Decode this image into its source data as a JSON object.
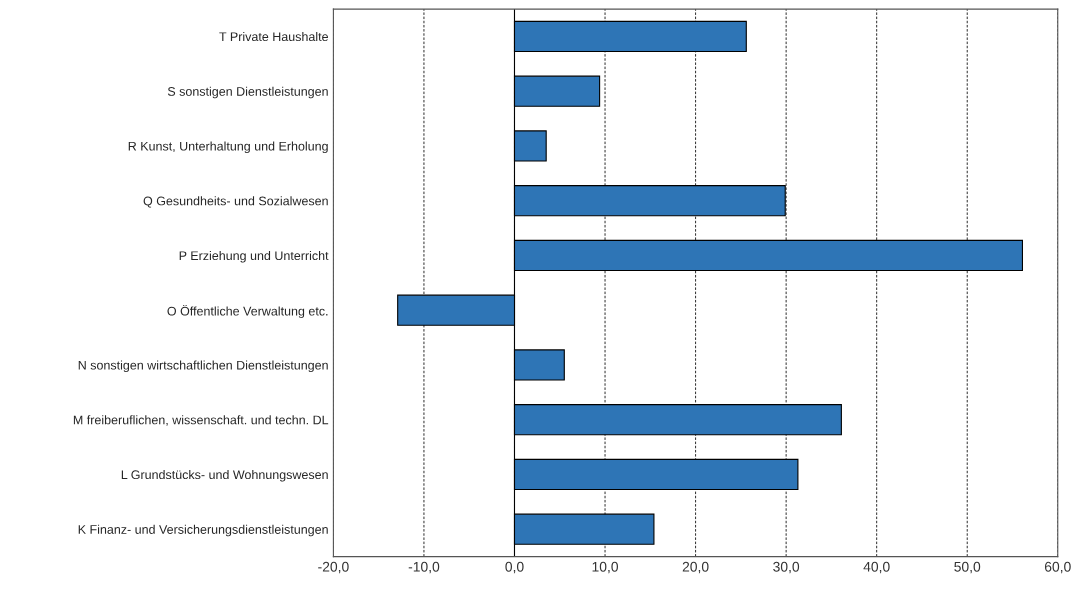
{
  "chart_data": {
    "type": "bar",
    "orientation": "horizontal",
    "categories": [
      "T Private Haushalte",
      "S sonstigen Dienstleistungen",
      "R Kunst, Unterhaltung und Erholung",
      "Q Gesundheits- und Sozialwesen",
      "P Erziehung und Unterricht",
      "O Öffentliche Verwaltung etc.",
      "N sonstigen wirtschaftlichen Dienstleistungen",
      "M freiberuflichen, wissenschaft. und techn. DL",
      "L Grundstücks- und Wohnungswesen",
      "K Finanz- und Versicherungsdienstleistungen"
    ],
    "values": [
      25.6,
      9.4,
      3.5,
      29.9,
      56.1,
      -12.9,
      5.5,
      36.1,
      31.3,
      15.4
    ],
    "color": "#2e75b6",
    "xlim": [
      -20,
      60
    ],
    "xticks": [
      {
        "value": -20,
        "label": "-20,0"
      },
      {
        "value": -10,
        "label": "-10,0"
      },
      {
        "value": 0,
        "label": "0,0"
      },
      {
        "value": 10,
        "label": "10,0"
      },
      {
        "value": 20,
        "label": "20,0"
      },
      {
        "value": 30,
        "label": "30,0"
      },
      {
        "value": 40,
        "label": "40,0"
      },
      {
        "value": 50,
        "label": "50,0"
      },
      {
        "value": 60,
        "label": "60,0"
      }
    ],
    "grid": "x",
    "ref_lines": [
      {
        "axis": "x",
        "value": 0,
        "color": "#000000",
        "line_style": "solid"
      }
    ]
  }
}
